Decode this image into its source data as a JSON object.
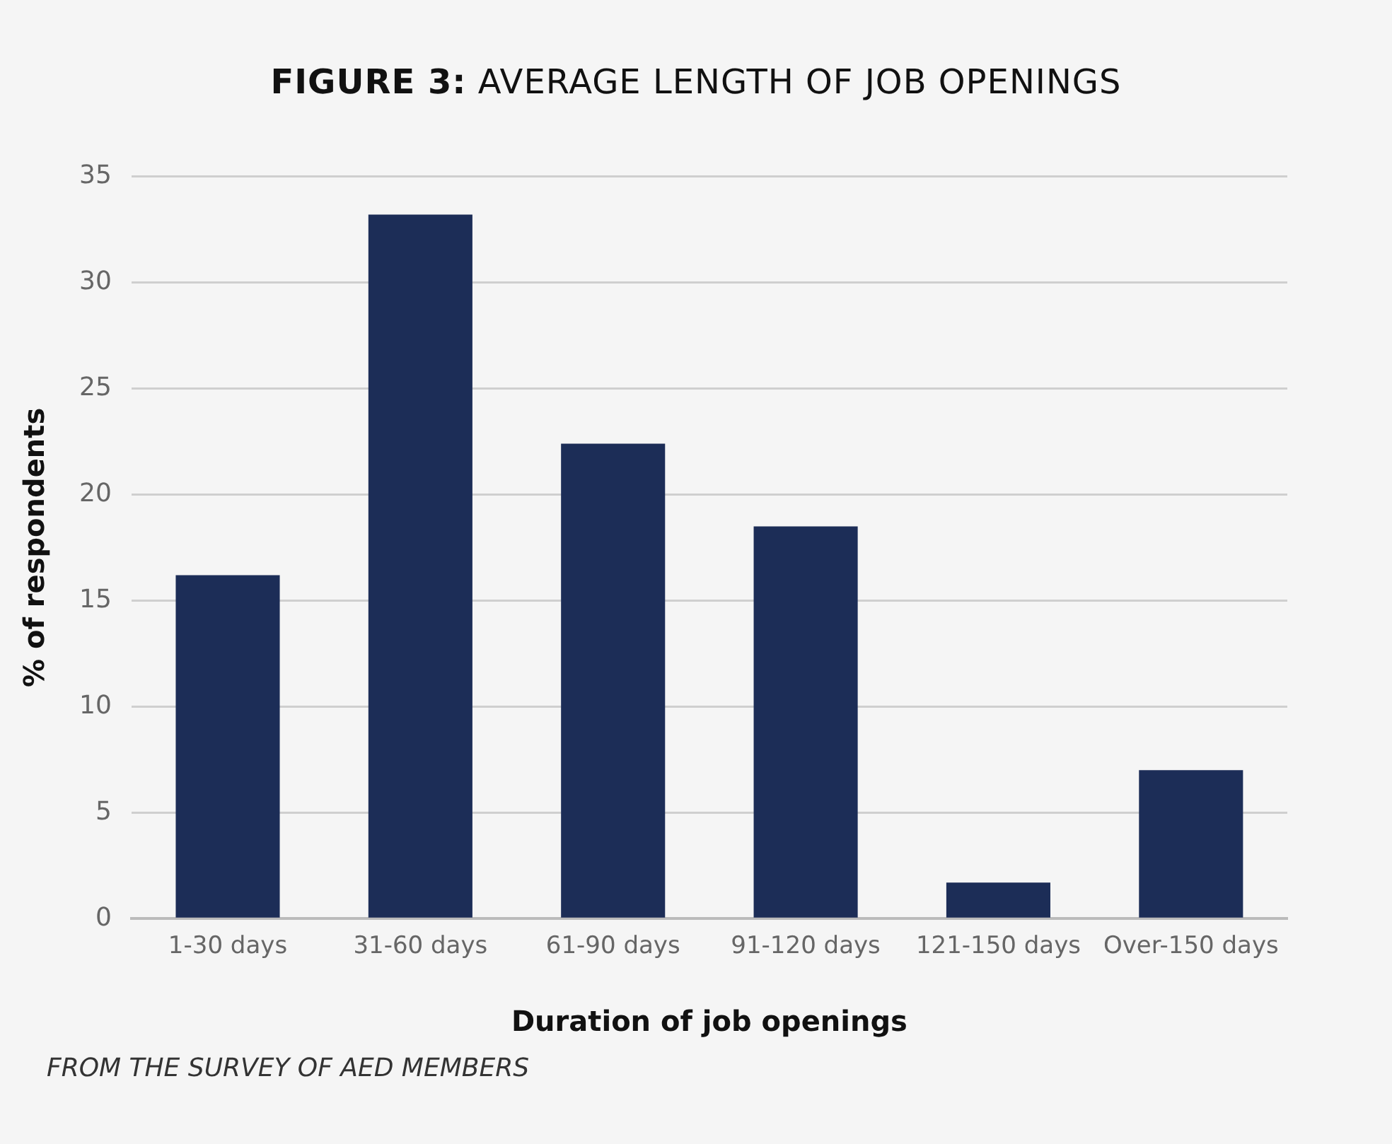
{
  "chart_data": {
    "type": "bar",
    "title": "FIGURE 3: AVERAGE LENGTH OF JOB OPENINGS",
    "xlabel": "Duration of job openings",
    "ylabel": "% of respondents",
    "categories": [
      "1-30 days",
      "31-60 days",
      "61-90 days",
      "91-120 days",
      "121-150 days",
      "Over-150 days"
    ],
    "values": [
      16.2,
      33.2,
      22.4,
      18.5,
      1.7,
      7.0
    ],
    "color": "#1c2d57",
    "ylim": [
      0,
      35
    ],
    "yticks": [
      0,
      5,
      10,
      15,
      20,
      25,
      30,
      35
    ],
    "grid": "y",
    "legend": false,
    "annotations": [
      "FROM THE SURVEY OF AED MEMBERS"
    ]
  }
}
